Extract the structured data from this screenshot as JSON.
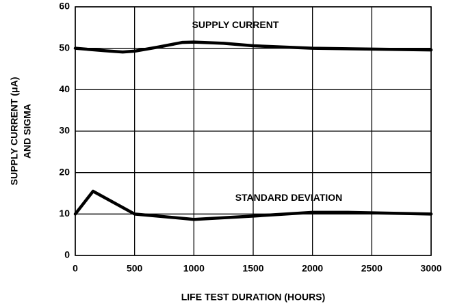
{
  "chart_data": {
    "type": "line",
    "x_label": "LIFE TEST DURATION (HOURS)",
    "y_label": [
      "SUPPLY CURRENT (μA)",
      "AND SIGMA"
    ],
    "series": [
      {
        "name": "SUPPLY CURRENT",
        "color": "#000000",
        "x": [
          0,
          250,
          400,
          500,
          700,
          900,
          1000,
          1250,
          1500,
          2000,
          2500,
          3000
        ],
        "values": [
          50,
          49.4,
          49.1,
          49.3,
          50.3,
          51.4,
          51.5,
          51.2,
          50.6,
          50.0,
          49.8,
          49.6
        ]
      },
      {
        "name": "STANDARD DEVIATION",
        "color": "#000000",
        "x": [
          0,
          150,
          500,
          1000,
          1500,
          2000,
          2300,
          3000
        ],
        "values": [
          10,
          15.5,
          10,
          8.7,
          9.5,
          10.4,
          10.4,
          10.0
        ]
      }
    ],
    "xlim": [
      0,
      3000
    ],
    "xticks": [
      0,
      500,
      1000,
      1500,
      2000,
      2500,
      3000
    ],
    "ylim": [
      0,
      60
    ],
    "yticks": [
      0,
      10,
      20,
      30,
      40,
      50,
      60
    ],
    "grid": true
  }
}
